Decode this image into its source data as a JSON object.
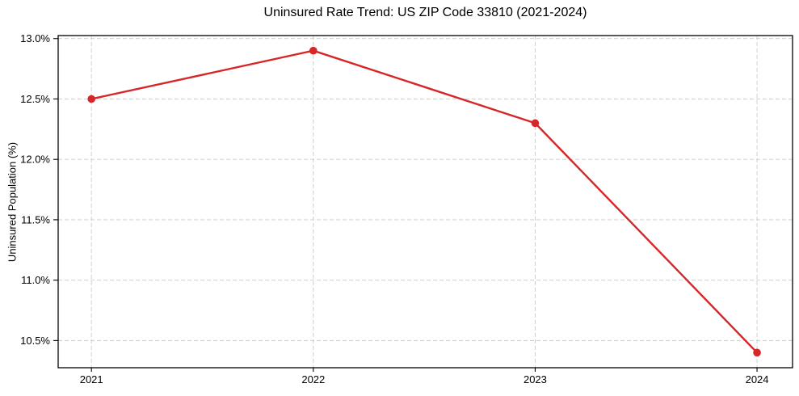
{
  "chart_data": {
    "type": "line",
    "title": "Uninsured Rate Trend: US ZIP Code 33810 (2021-2024)",
    "xlabel": "",
    "ylabel": "Uninsured Population (%)",
    "x": [
      2021,
      2022,
      2023,
      2024
    ],
    "xtick_labels": [
      "2021",
      "2022",
      "2023",
      "2024"
    ],
    "series": [
      {
        "name": "Uninsured Population (%)",
        "values": [
          12.5,
          12.9,
          12.3,
          10.4
        ]
      }
    ],
    "yticks": [
      10.5,
      11.0,
      11.5,
      12.0,
      12.5,
      13.0
    ],
    "ytick_labels": [
      "10.5%",
      "11.0%",
      "11.5%",
      "12.0%",
      "12.5%",
      "13.0%"
    ],
    "xlim": [
      2020.85,
      2024.16
    ],
    "ylim": [
      10.275,
      13.025
    ],
    "grid": true,
    "grid_style": "dashed",
    "legend": "none",
    "marker": "circle",
    "line_color": "#d62728",
    "grid_color": "#c9c9c9",
    "frame_color": "#000000",
    "tick_color": "#000000",
    "text_color": "#000000",
    "background_color": "#ffffff"
  }
}
